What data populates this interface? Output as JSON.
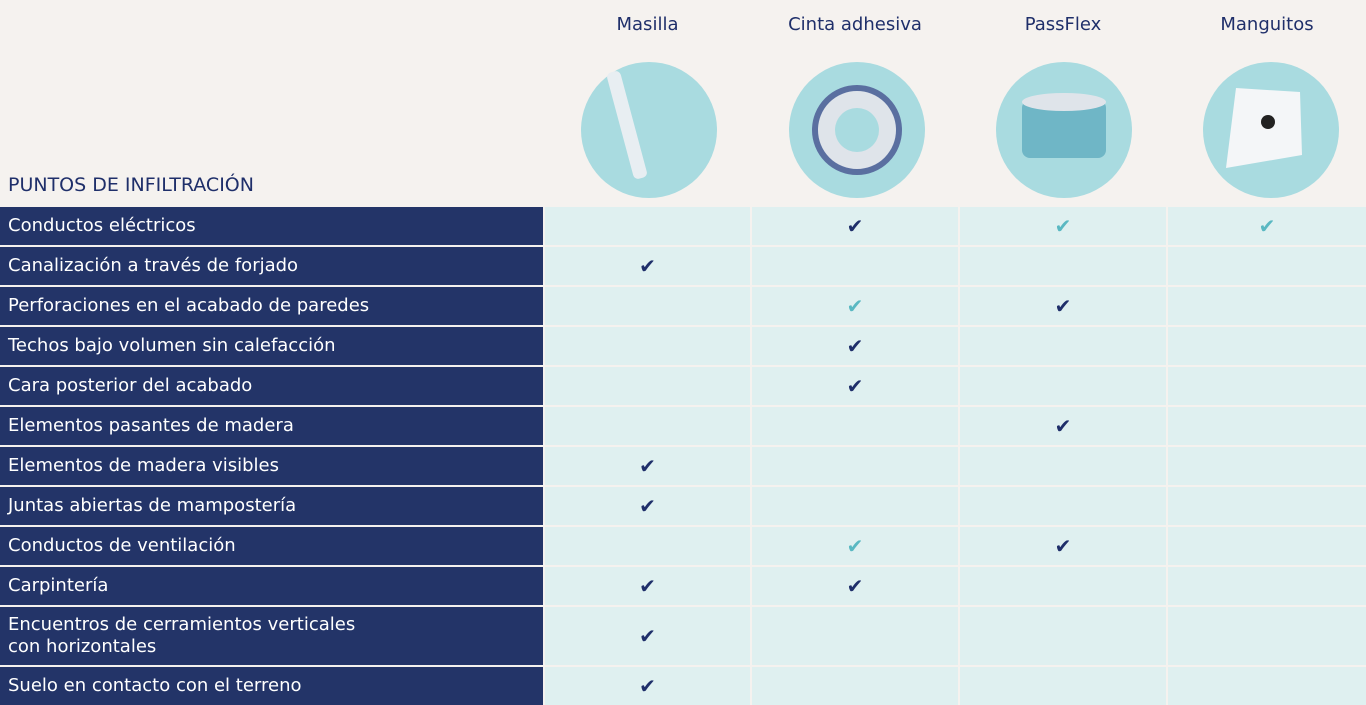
{
  "header": {
    "title": "PUNTOS DE INFILTRACIÓN",
    "columns": [
      "Masilla",
      "Cinta adhesiva",
      "PassFlex",
      "Manguitos"
    ]
  },
  "table": {
    "rows": [
      {
        "label": "Conductos eléctricos",
        "cells": [
          null,
          {
            "text": "✔",
            "color": "#1f2f6a"
          },
          {
            "text": "✔",
            "color": "#5ab8c2"
          },
          {
            "text": "✔",
            "color": "#5ab8c2"
          }
        ]
      },
      {
        "label": "Canalización a través de forjado",
        "cells": [
          {
            "text": "✔",
            "color": "#1f2f6a"
          },
          null,
          null,
          null
        ]
      },
      {
        "label": "Perforaciones en el acabado de paredes",
        "cells": [
          null,
          {
            "text": "✔",
            "color": "#5ab8c2"
          },
          {
            "text": "✔",
            "color": "#1f2f6a"
          },
          null
        ]
      },
      {
        "label": "Techos bajo volumen sin calefacción",
        "cells": [
          null,
          {
            "text": "✔",
            "color": "#1f2f6a"
          },
          null,
          null
        ]
      },
      {
        "label": "Cara posterior del acabado",
        "cells": [
          null,
          {
            "text": "✔",
            "color": "#1f2f6a"
          },
          null,
          null
        ]
      },
      {
        "label": "Elementos pasantes de madera",
        "cells": [
          null,
          null,
          {
            "text": "✔",
            "color": "#1f2f6a"
          },
          null
        ]
      },
      {
        "label": "Elementos de madera visibles",
        "cells": [
          {
            "text": "✔",
            "color": "#1f2f6a"
          },
          null,
          null,
          null
        ]
      },
      {
        "label": "Juntas abiertas de mampostería",
        "cells": [
          {
            "text": "✔",
            "color": "#1f2f6a"
          },
          null,
          null,
          null
        ]
      },
      {
        "label": "Conductos de ventilación",
        "cells": [
          null,
          {
            "text": "✔",
            "color": "#5ab8c2"
          },
          {
            "text": "✔",
            "color": "#1f2f6a"
          },
          null
        ]
      },
      {
        "label": "Carpintería",
        "cells": [
          {
            "text": "✔",
            "color": "#1f2f6a"
          },
          {
            "text": "✔",
            "color": "#1f2f6a"
          },
          null,
          null
        ]
      },
      {
        "label": "Encuentros de cerramientos verticales\ncon horizontales",
        "cells": [
          {
            "text": "✔",
            "color": "#1f2f6a"
          },
          null,
          null,
          null
        ]
      },
      {
        "label": "Suelo en contacto con el terreno",
        "cells": [
          {
            "text": "✔",
            "color": "#1f2f6a"
          },
          null,
          null,
          null
        ]
      }
    ]
  }
}
